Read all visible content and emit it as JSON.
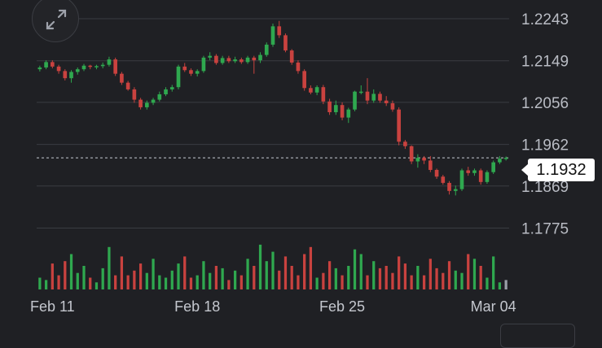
{
  "colors": {
    "up": "#2fa84f",
    "down": "#c9423f",
    "neutral": "#9aa0a8",
    "grid": "#3a3c42",
    "background": "#1f2024"
  },
  "icons": {
    "expand": "expand-arrows-icon"
  },
  "current_price": "1.1932",
  "chart_data": {
    "type": "candlestick",
    "title": "",
    "xlabel": "",
    "ylabel": "",
    "ylim": [
      1.1745,
      1.2243
    ],
    "yticks": [
      "1.2243",
      "1.2149",
      "1.2056",
      "1.1962",
      "1.1869",
      "1.1775"
    ],
    "xticks": [
      {
        "label": "Feb 11",
        "index": 2
      },
      {
        "label": "Feb 18",
        "index": 25
      },
      {
        "label": "Feb 25",
        "index": 48
      },
      {
        "label": "Mar 04",
        "index": 72
      }
    ],
    "last_price": 1.1932,
    "candles": [
      [
        1.213,
        1.2138,
        1.2125,
        1.2134
      ],
      [
        1.2134,
        1.215,
        1.213,
        1.2146
      ],
      [
        1.2146,
        1.215,
        1.2132,
        1.2136
      ],
      [
        1.2136,
        1.214,
        1.212,
        1.2126
      ],
      [
        1.2126,
        1.213,
        1.2105,
        1.211
      ],
      [
        1.211,
        1.2128,
        1.21,
        1.2124
      ],
      [
        1.2124,
        1.2134,
        1.2118,
        1.213
      ],
      [
        1.213,
        1.2142,
        1.2126,
        1.2138
      ],
      [
        1.2138,
        1.214,
        1.213,
        1.2136
      ],
      [
        1.2136,
        1.214,
        1.213,
        1.2137
      ],
      [
        1.2137,
        1.2145,
        1.2132,
        1.214
      ],
      [
        1.214,
        1.2158,
        1.2136,
        1.2152
      ],
      [
        1.2152,
        1.2156,
        1.2115,
        1.212
      ],
      [
        1.212,
        1.2124,
        1.2095,
        1.21
      ],
      [
        1.21,
        1.2104,
        1.2082,
        1.2085
      ],
      [
        1.2085,
        1.209,
        1.2055,
        1.2062
      ],
      [
        1.2062,
        1.2066,
        1.204,
        1.2045
      ],
      [
        1.2045,
        1.206,
        1.204,
        1.2055
      ],
      [
        1.2055,
        1.2066,
        1.205,
        1.2062
      ],
      [
        1.2062,
        1.208,
        1.2058,
        1.2074
      ],
      [
        1.2074,
        1.209,
        1.207,
        1.2085
      ],
      [
        1.2085,
        1.2095,
        1.208,
        1.209
      ],
      [
        1.209,
        1.214,
        1.2085,
        1.2136
      ],
      [
        1.2136,
        1.2144,
        1.2124,
        1.2128
      ],
      [
        1.2128,
        1.2132,
        1.2115,
        1.212
      ],
      [
        1.212,
        1.213,
        1.2114,
        1.2126
      ],
      [
        1.2126,
        1.216,
        1.2122,
        1.2156
      ],
      [
        1.2156,
        1.2168,
        1.215,
        1.216
      ],
      [
        1.216,
        1.2164,
        1.214,
        1.2144
      ],
      [
        1.2144,
        1.216,
        1.214,
        1.2155
      ],
      [
        1.2155,
        1.216,
        1.2144,
        1.2148
      ],
      [
        1.2148,
        1.2158,
        1.2144,
        1.2152
      ],
      [
        1.2152,
        1.2156,
        1.2142,
        1.2146
      ],
      [
        1.2146,
        1.216,
        1.2142,
        1.2156
      ],
      [
        1.2156,
        1.216,
        1.212,
        1.215
      ],
      [
        1.215,
        1.2168,
        1.2144,
        1.2162
      ],
      [
        1.2162,
        1.219,
        1.2158,
        1.2185
      ],
      [
        1.2185,
        1.2232,
        1.218,
        1.2226
      ],
      [
        1.2226,
        1.2238,
        1.22,
        1.2206
      ],
      [
        1.2206,
        1.221,
        1.2168,
        1.2172
      ],
      [
        1.2172,
        1.2175,
        1.214,
        1.2145
      ],
      [
        1.2145,
        1.215,
        1.212,
        1.2126
      ],
      [
        1.2126,
        1.213,
        1.2082,
        1.2088
      ],
      [
        1.2088,
        1.2094,
        1.2074,
        1.2078
      ],
      [
        1.2078,
        1.2094,
        1.2072,
        1.209
      ],
      [
        1.209,
        1.2095,
        1.2052,
        1.2058
      ],
      [
        1.2058,
        1.2064,
        1.2028,
        1.2034
      ],
      [
        1.2034,
        1.206,
        1.2028,
        1.205
      ],
      [
        1.205,
        1.2056,
        1.2016,
        1.2022
      ],
      [
        1.2022,
        1.2044,
        1.201,
        1.204
      ],
      [
        1.204,
        1.2082,
        1.2036,
        1.208
      ],
      [
        1.208,
        1.2094,
        1.2074,
        1.208
      ],
      [
        1.208,
        1.211,
        1.2052,
        1.206
      ],
      [
        1.206,
        1.2085,
        1.2055,
        1.2075
      ],
      [
        1.2075,
        1.208,
        1.2055,
        1.206
      ],
      [
        1.206,
        1.207,
        1.2048,
        1.2054
      ],
      [
        1.2054,
        1.206,
        1.2035,
        1.204
      ],
      [
        1.204,
        1.2045,
        1.196,
        1.1968
      ],
      [
        1.1968,
        1.1972,
        1.1952,
        1.1958
      ],
      [
        1.1958,
        1.196,
        1.1918,
        1.1924
      ],
      [
        1.1924,
        1.194,
        1.191,
        1.1932
      ],
      [
        1.1932,
        1.1936,
        1.1918,
        1.1926
      ],
      [
        1.1926,
        1.1936,
        1.19,
        1.1905
      ],
      [
        1.1905,
        1.1908,
        1.1885,
        1.189
      ],
      [
        1.189,
        1.1894,
        1.1872,
        1.1876
      ],
      [
        1.1876,
        1.188,
        1.185,
        1.1858
      ],
      [
        1.1858,
        1.187,
        1.1848,
        1.1862
      ],
      [
        1.1862,
        1.1908,
        1.1858,
        1.1904
      ],
      [
        1.1904,
        1.1912,
        1.1892,
        1.1898
      ],
      [
        1.1898,
        1.1908,
        1.1892,
        1.1904
      ],
      [
        1.1904,
        1.1908,
        1.1872,
        1.1878
      ],
      [
        1.1878,
        1.1904,
        1.1874,
        1.19
      ],
      [
        1.19,
        1.1926,
        1.1896,
        1.1922
      ],
      [
        1.1922,
        1.1936,
        1.1918,
        1.193
      ],
      [
        1.193,
        1.1935,
        1.1926,
        1.1932
      ]
    ],
    "volumes": [
      0.25,
      0.2,
      0.55,
      0.3,
      0.6,
      0.75,
      0.35,
      0.5,
      0.25,
      0.15,
      0.45,
      0.9,
      0.3,
      0.7,
      0.3,
      0.4,
      0.55,
      0.35,
      0.65,
      0.3,
      0.25,
      0.4,
      0.55,
      0.7,
      0.25,
      0.3,
      0.6,
      0.35,
      0.5,
      0.45,
      0.2,
      0.4,
      0.3,
      0.65,
      0.5,
      0.95,
      0.6,
      0.8,
      0.4,
      0.7,
      0.5,
      0.3,
      0.75,
      0.9,
      0.25,
      0.35,
      0.6,
      0.45,
      0.3,
      0.5,
      0.85,
      0.75,
      0.3,
      0.6,
      0.45,
      0.5,
      0.35,
      0.7,
      0.55,
      0.3,
      0.5,
      0.3,
      0.65,
      0.45,
      0.35,
      0.6,
      0.4,
      0.35,
      0.75,
      0.65,
      0.5,
      0.25,
      0.7,
      0.15,
      0.2
    ]
  }
}
